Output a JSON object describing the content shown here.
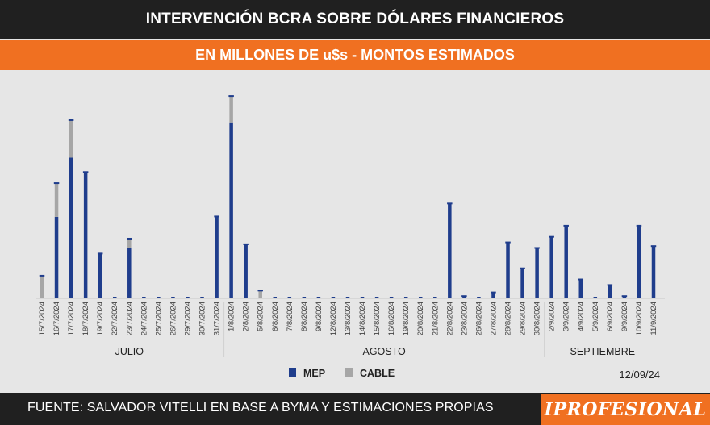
{
  "header": {
    "title": "INTERVENCIÓN BCRA SOBRE DÓLARES FINANCIEROS",
    "subtitle": "EN MILLONES DE u$s - MONTOS ESTIMADOS"
  },
  "footer": {
    "source": "FUENTE: SALVADOR VITELLI EN BASE A BYMA Y ESTIMACIONES PROPIAS",
    "brand": "IPROFESIONAL",
    "date_stamp": "12/09/24"
  },
  "colors": {
    "mep": "#1f3d8c",
    "cable": "#a6a6a6",
    "accent": "#f07021",
    "dark": "#202020"
  },
  "chart_data": {
    "type": "bar",
    "stacked": true,
    "y_axis_visible": false,
    "grid": false,
    "legend_position": "bottom-center",
    "categories": [
      "15/7/2024",
      "16/7/2024",
      "17/7/2024",
      "18/7/2024",
      "19/7/2024",
      "22/7/2024",
      "23/7/2024",
      "24/7/2024",
      "25/7/2024",
      "26/7/2024",
      "29/7/2024",
      "30/7/2024",
      "31/7/2024",
      "1/8/2024",
      "2/8/2024",
      "5/8/2024",
      "6/8/2024",
      "7/8/2024",
      "8/8/2024",
      "9/8/2024",
      "12/8/2024",
      "13/8/2024",
      "14/8/2024",
      "15/8/2024",
      "16/8/2024",
      "19/8/2024",
      "20/8/2024",
      "21/8/2024",
      "22/8/2024",
      "23/8/2024",
      "26/8/2024",
      "27/8/2024",
      "28/8/2024",
      "29/8/2024",
      "30/8/2024",
      "2/9/2024",
      "3/9/2024",
      "4/9/2024",
      "5/9/2024",
      "6/9/2024",
      "9/9/2024",
      "10/9/2024",
      "11/9/2024"
    ],
    "month_groups": [
      {
        "label": "JULIO",
        "start": 0,
        "end": 12
      },
      {
        "label": "AGOSTO",
        "start": 13,
        "end": 34
      },
      {
        "label": "SEPTIEMBRE",
        "start": 35,
        "end": 42
      }
    ],
    "series": [
      {
        "name": "MEP",
        "color": "#1f3d8c",
        "values": [
          0,
          44,
          76,
          68,
          24,
          0,
          27,
          0,
          0,
          0,
          0,
          0,
          44,
          95,
          29,
          0,
          0,
          0,
          0,
          0,
          0,
          0,
          0,
          0,
          0,
          0,
          0,
          0,
          51,
          1,
          0,
          3,
          30,
          16,
          27,
          33,
          39,
          10,
          0,
          7,
          1,
          39,
          28
        ]
      },
      {
        "name": "CABLE",
        "color": "#a6a6a6",
        "values": [
          12,
          18,
          20,
          0,
          0,
          0,
          5,
          0,
          0,
          0,
          0,
          0,
          0,
          14,
          0,
          4,
          0,
          0,
          0,
          0,
          0,
          0,
          0,
          0,
          0,
          0,
          0,
          0,
          0,
          0,
          0,
          0,
          0,
          0,
          0,
          0,
          0,
          0,
          0,
          0,
          0,
          0,
          0
        ]
      }
    ],
    "ylim": [
      0,
      111
    ]
  }
}
